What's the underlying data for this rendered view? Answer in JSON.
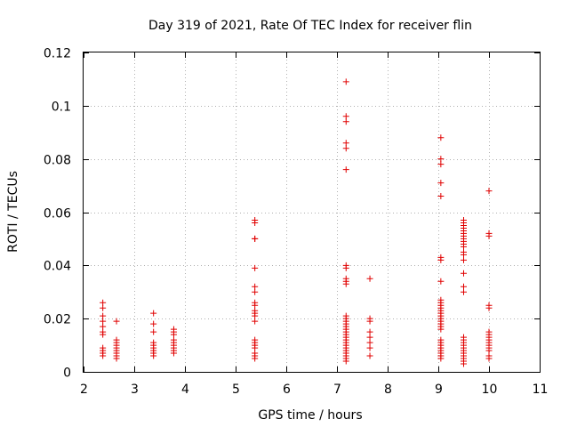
{
  "chart_data": {
    "type": "scatter",
    "title": "Day 319 of 2021, Rate Of TEC Index for receiver flin",
    "xlabel": "GPS time / hours",
    "ylabel": "ROTI / TECUs",
    "xlim": [
      2,
      11
    ],
    "ylim": [
      0,
      0.12
    ],
    "grid": true,
    "marker": "+",
    "color": "#e00000",
    "x_ticks": [
      {
        "value": 2,
        "label": "2"
      },
      {
        "value": 3,
        "label": "3"
      },
      {
        "value": 4,
        "label": "4"
      },
      {
        "value": 5,
        "label": "5"
      },
      {
        "value": 6,
        "label": "6"
      },
      {
        "value": 7,
        "label": "7"
      },
      {
        "value": 8,
        "label": "8"
      },
      {
        "value": 9,
        "label": "9"
      },
      {
        "value": 10,
        "label": "10"
      },
      {
        "value": 11,
        "label": "11"
      }
    ],
    "y_ticks": [
      {
        "value": 0,
        "label": "0"
      },
      {
        "value": 0.02,
        "label": "0.02"
      },
      {
        "value": 0.04,
        "label": "0.04"
      },
      {
        "value": 0.06,
        "label": "0.06"
      },
      {
        "value": 0.08,
        "label": "0.08"
      },
      {
        "value": 0.1,
        "label": "0.1"
      },
      {
        "value": 0.12,
        "label": "0.12"
      }
    ],
    "series": [
      {
        "name": "ROTI",
        "points": [
          [
            2.38,
            0.026
          ],
          [
            2.38,
            0.024
          ],
          [
            2.38,
            0.021
          ],
          [
            2.38,
            0.019
          ],
          [
            2.38,
            0.017
          ],
          [
            2.38,
            0.015
          ],
          [
            2.38,
            0.014
          ],
          [
            2.38,
            0.009
          ],
          [
            2.38,
            0.008
          ],
          [
            2.38,
            0.007
          ],
          [
            2.38,
            0.006
          ],
          [
            2.65,
            0.019
          ],
          [
            2.65,
            0.012
          ],
          [
            2.65,
            0.011
          ],
          [
            2.65,
            0.01
          ],
          [
            2.65,
            0.009
          ],
          [
            2.65,
            0.008
          ],
          [
            2.65,
            0.007
          ],
          [
            2.65,
            0.006
          ],
          [
            2.65,
            0.005
          ],
          [
            3.38,
            0.022
          ],
          [
            3.38,
            0.018
          ],
          [
            3.38,
            0.015
          ],
          [
            3.38,
            0.011
          ],
          [
            3.38,
            0.01
          ],
          [
            3.38,
            0.009
          ],
          [
            3.38,
            0.008
          ],
          [
            3.38,
            0.007
          ],
          [
            3.38,
            0.006
          ],
          [
            3.78,
            0.016
          ],
          [
            3.78,
            0.015
          ],
          [
            3.78,
            0.014
          ],
          [
            3.78,
            0.012
          ],
          [
            3.78,
            0.011
          ],
          [
            3.78,
            0.01
          ],
          [
            3.78,
            0.009
          ],
          [
            3.78,
            0.008
          ],
          [
            3.78,
            0.007
          ],
          [
            5.38,
            0.057
          ],
          [
            5.38,
            0.056
          ],
          [
            5.38,
            0.05
          ],
          [
            5.38,
            0.05
          ],
          [
            5.38,
            0.039
          ],
          [
            5.38,
            0.032
          ],
          [
            5.38,
            0.03
          ],
          [
            5.38,
            0.026
          ],
          [
            5.38,
            0.025
          ],
          [
            5.38,
            0.023
          ],
          [
            5.38,
            0.022
          ],
          [
            5.38,
            0.021
          ],
          [
            5.38,
            0.019
          ],
          [
            5.38,
            0.012
          ],
          [
            5.38,
            0.011
          ],
          [
            5.38,
            0.01
          ],
          [
            5.38,
            0.009
          ],
          [
            5.38,
            0.007
          ],
          [
            5.38,
            0.006
          ],
          [
            5.38,
            0.005
          ],
          [
            7.18,
            0.109
          ],
          [
            7.18,
            0.096
          ],
          [
            7.18,
            0.094
          ],
          [
            7.18,
            0.086
          ],
          [
            7.18,
            0.084
          ],
          [
            7.18,
            0.076
          ],
          [
            7.18,
            0.04
          ],
          [
            7.18,
            0.039
          ],
          [
            7.18,
            0.035
          ],
          [
            7.18,
            0.034
          ],
          [
            7.18,
            0.033
          ],
          [
            7.18,
            0.021
          ],
          [
            7.18,
            0.02
          ],
          [
            7.18,
            0.019
          ],
          [
            7.18,
            0.018
          ],
          [
            7.18,
            0.017
          ],
          [
            7.18,
            0.016
          ],
          [
            7.18,
            0.015
          ],
          [
            7.18,
            0.014
          ],
          [
            7.18,
            0.013
          ],
          [
            7.18,
            0.012
          ],
          [
            7.18,
            0.011
          ],
          [
            7.18,
            0.01
          ],
          [
            7.18,
            0.009
          ],
          [
            7.18,
            0.008
          ],
          [
            7.18,
            0.007
          ],
          [
            7.18,
            0.006
          ],
          [
            7.18,
            0.005
          ],
          [
            7.18,
            0.004
          ],
          [
            7.65,
            0.035
          ],
          [
            7.65,
            0.02
          ],
          [
            7.65,
            0.019
          ],
          [
            7.65,
            0.015
          ],
          [
            7.65,
            0.013
          ],
          [
            7.65,
            0.011
          ],
          [
            7.65,
            0.009
          ],
          [
            7.65,
            0.006
          ],
          [
            9.05,
            0.088
          ],
          [
            9.05,
            0.08
          ],
          [
            9.05,
            0.078
          ],
          [
            9.05,
            0.071
          ],
          [
            9.05,
            0.066
          ],
          [
            9.05,
            0.043
          ],
          [
            9.05,
            0.042
          ],
          [
            9.05,
            0.034
          ],
          [
            9.05,
            0.027
          ],
          [
            9.05,
            0.026
          ],
          [
            9.05,
            0.025
          ],
          [
            9.05,
            0.024
          ],
          [
            9.05,
            0.023
          ],
          [
            9.05,
            0.022
          ],
          [
            9.05,
            0.021
          ],
          [
            9.05,
            0.02
          ],
          [
            9.05,
            0.019
          ],
          [
            9.05,
            0.018
          ],
          [
            9.05,
            0.017
          ],
          [
            9.05,
            0.016
          ],
          [
            9.05,
            0.012
          ],
          [
            9.05,
            0.011
          ],
          [
            9.05,
            0.01
          ],
          [
            9.05,
            0.009
          ],
          [
            9.05,
            0.008
          ],
          [
            9.05,
            0.007
          ],
          [
            9.05,
            0.006
          ],
          [
            9.05,
            0.005
          ],
          [
            9.5,
            0.057
          ],
          [
            9.5,
            0.056
          ],
          [
            9.5,
            0.055
          ],
          [
            9.5,
            0.054
          ],
          [
            9.5,
            0.053
          ],
          [
            9.5,
            0.052
          ],
          [
            9.5,
            0.051
          ],
          [
            9.5,
            0.05
          ],
          [
            9.5,
            0.049
          ],
          [
            9.5,
            0.048
          ],
          [
            9.5,
            0.047
          ],
          [
            9.5,
            0.045
          ],
          [
            9.5,
            0.044
          ],
          [
            9.5,
            0.042
          ],
          [
            9.5,
            0.037
          ],
          [
            9.5,
            0.032
          ],
          [
            9.5,
            0.03
          ],
          [
            9.5,
            0.013
          ],
          [
            9.5,
            0.012
          ],
          [
            9.5,
            0.011
          ],
          [
            9.5,
            0.01
          ],
          [
            9.5,
            0.009
          ],
          [
            9.5,
            0.008
          ],
          [
            9.5,
            0.007
          ],
          [
            9.5,
            0.006
          ],
          [
            9.5,
            0.005
          ],
          [
            9.5,
            0.004
          ],
          [
            9.5,
            0.003
          ],
          [
            10.0,
            0.068
          ],
          [
            10.0,
            0.052
          ],
          [
            10.0,
            0.051
          ],
          [
            10.0,
            0.025
          ],
          [
            10.0,
            0.024
          ],
          [
            10.0,
            0.015
          ],
          [
            10.0,
            0.014
          ],
          [
            10.0,
            0.013
          ],
          [
            10.0,
            0.012
          ],
          [
            10.0,
            0.011
          ],
          [
            10.0,
            0.01
          ],
          [
            10.0,
            0.009
          ],
          [
            10.0,
            0.008
          ],
          [
            10.0,
            0.006
          ],
          [
            10.0,
            0.005
          ]
        ]
      }
    ]
  }
}
